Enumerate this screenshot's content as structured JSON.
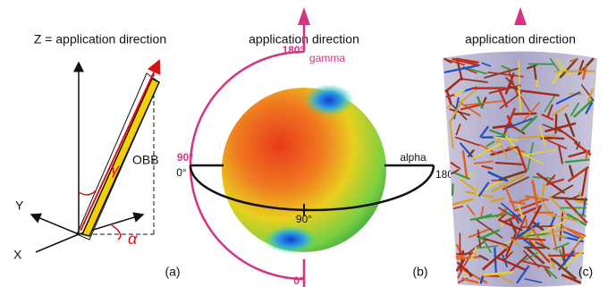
{
  "panels": [
    {
      "title": "Z = application direction",
      "labels": {
        "obb": "OBB",
        "y_axis": "Y",
        "x_axis": "X",
        "gamma_symbol": "γ",
        "alpha_symbol": "α"
      },
      "caption": "(a)"
    },
    {
      "title": "application direction",
      "labels": {
        "gamma_top": "180°",
        "gamma_name": "gamma",
        "gamma_mid": "90°",
        "alpha_start": "0°",
        "alpha_name": "alpha",
        "alpha_end": "180°",
        "alpha_mid": "90°",
        "gamma_bottom": "0°"
      },
      "caption": "(b)"
    },
    {
      "title": "application direction",
      "caption": "(c)"
    }
  ]
}
